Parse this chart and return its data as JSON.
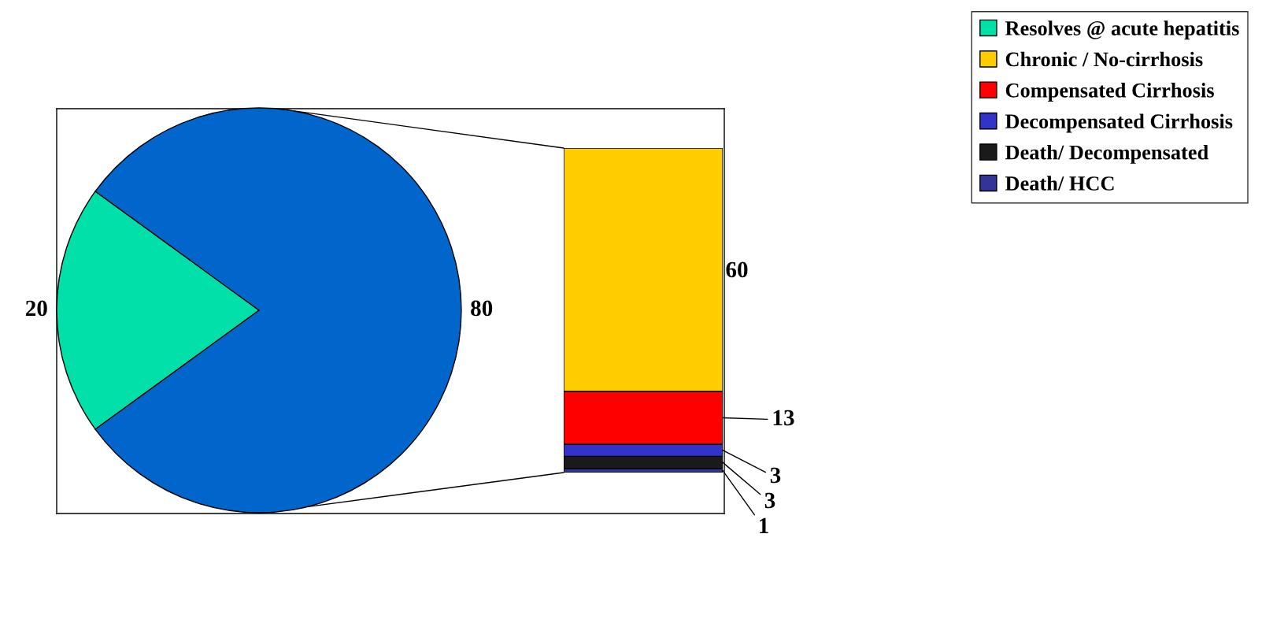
{
  "chart_data": [
    {
      "type": "pie",
      "categories": [
        "Resolves @ acute hepatitis",
        null
      ],
      "values": [
        20,
        80
      ],
      "colors": [
        "#00e0a8",
        "#0066cc"
      ],
      "data_labels": true
    },
    {
      "type": "bar",
      "stacked": true,
      "categories": [
        null
      ],
      "data_labels": true,
      "legend": "top right",
      "series": [
        {
          "name": "Death/ HCC",
          "color": "#333399",
          "values": [
            1
          ]
        },
        {
          "name": "Death/ Decompensated",
          "color": "#1a1a1a",
          "values": [
            3
          ]
        },
        {
          "name": "Decompensated Cirrhosis",
          "color": "#3333cc",
          "values": [
            3
          ]
        },
        {
          "name": "Compensated Cirrhosis",
          "color": "#ff0000",
          "values": [
            13
          ]
        },
        {
          "name": "Chronic / No-cirrhosis",
          "color": "#ffcc00",
          "values": [
            60
          ]
        }
      ]
    }
  ]
}
